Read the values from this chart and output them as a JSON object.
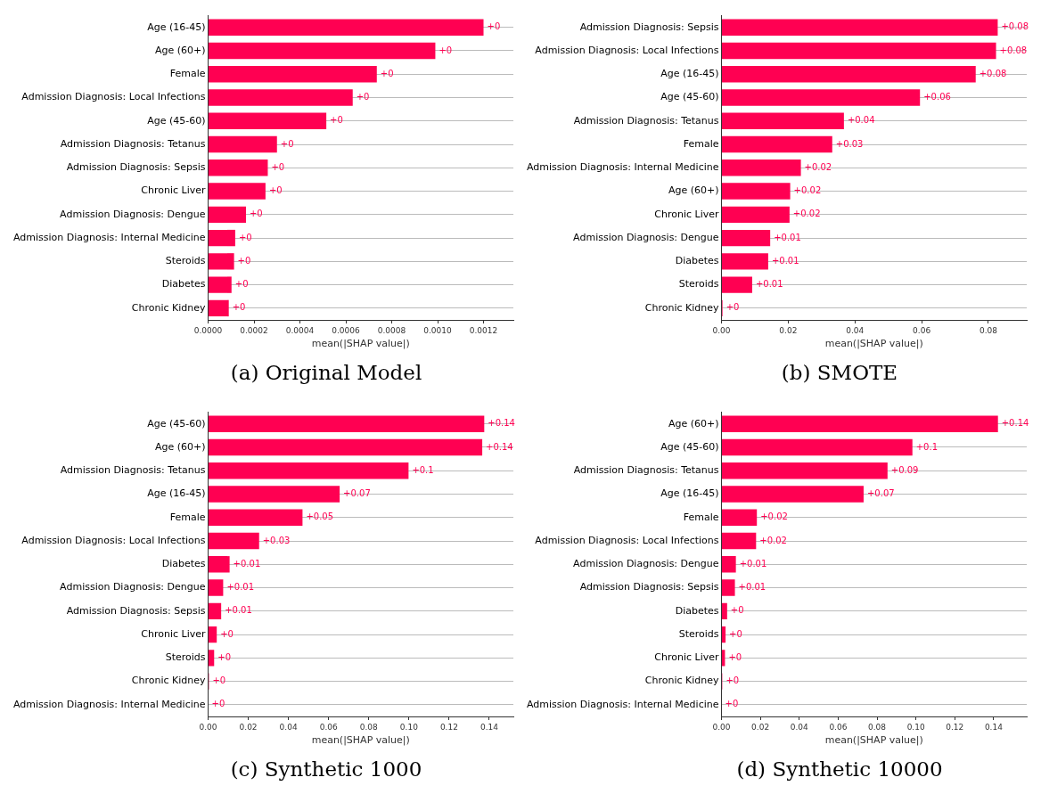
{
  "chart_data": [
    {
      "type": "bar",
      "orientation": "horizontal",
      "title": "(a) Original Model",
      "xlabel": "mean(|SHAP value|)",
      "grid": "y",
      "categories": [
        "Age (16-45)",
        "Age (60+)",
        "Female",
        "Admission Diagnosis: Local Infections",
        "Age (45-60)",
        "Admission Diagnosis: Tetanus",
        "Admission Diagnosis: Sepsis",
        "Chronic Liver",
        "Admission Diagnosis: Dengue",
        "Admission Diagnosis: Internal Medicine",
        "Steroids",
        "Diabetes",
        "Chronic Kidney"
      ],
      "series": [
        {
          "color": "#ff0052",
          "values": [
            0.0012,
            0.00099,
            0.000735,
            0.00063,
            0.000515,
            0.0003,
            0.00026,
            0.00025,
            0.000165,
            0.000118,
            0.000113,
            0.000102,
            9e-05
          ],
          "value_labels": [
            "+0",
            "+0",
            "+0",
            "+0",
            "+0",
            "+0",
            "+0",
            "+0",
            "+0",
            "+0",
            "+0",
            "+0",
            "+0"
          ]
        }
      ],
      "xlim": [
        0,
        0.00133
      ],
      "xticks": [
        {
          "value": 0,
          "label": "0.0000"
        },
        {
          "value": 0.0002,
          "label": "0.0002"
        },
        {
          "value": 0.0004,
          "label": "0.0004"
        },
        {
          "value": 0.0006,
          "label": "0.0006"
        },
        {
          "value": 0.0008,
          "label": "0.0008"
        },
        {
          "value": 0.001,
          "label": "0.0010"
        },
        {
          "value": 0.0012,
          "label": "0.0012"
        }
      ]
    },
    {
      "type": "bar",
      "orientation": "horizontal",
      "title": "(b) SMOTE",
      "xlabel": "mean(|SHAP value|)",
      "grid": "y",
      "categories": [
        "Admission Diagnosis: Sepsis",
        "Admission Diagnosis: Local Infections",
        "Age (16-45)",
        "Age (45-60)",
        "Admission Diagnosis: Tetanus",
        "Female",
        "Admission Diagnosis: Internal Medicine",
        "Age (60+)",
        "Chronic Liver",
        "Admission Diagnosis: Dengue",
        "Diabetes",
        "Steroids",
        "Chronic Kidney"
      ],
      "series": [
        {
          "color": "#ff0052",
          "values": [
            0.0828,
            0.0823,
            0.0762,
            0.0595,
            0.0367,
            0.0332,
            0.0238,
            0.0206,
            0.0204,
            0.0146,
            0.014,
            0.0092,
            0.0003
          ],
          "value_labels": [
            "+0.08",
            "+0.08",
            "+0.08",
            "+0.06",
            "+0.04",
            "+0.03",
            "+0.02",
            "+0.02",
            "+0.02",
            "+0.01",
            "+0.01",
            "+0.01",
            "+0"
          ]
        }
      ],
      "xlim": [
        0,
        0.0915
      ],
      "xticks": [
        {
          "value": 0,
          "label": "0.00"
        },
        0.02,
        0.04,
        0.06,
        0.08
      ]
    },
    {
      "type": "bar",
      "orientation": "horizontal",
      "title": "(c) Synthetic 1000",
      "xlabel": "mean(|SHAP value|)",
      "grid": "y",
      "categories": [
        "Age (45-60)",
        "Age (60+)",
        "Admission Diagnosis: Tetanus",
        "Age (16-45)",
        "Female",
        "Admission Diagnosis: Local Infections",
        "Diabetes",
        "Admission Diagnosis: Dengue",
        "Admission Diagnosis: Sepsis",
        "Chronic Liver",
        "Steroids",
        "Chronic Kidney",
        "Admission Diagnosis: Internal Medicine"
      ],
      "series": [
        {
          "color": "#ff0052",
          "values": [
            0.1375,
            0.1365,
            0.0998,
            0.0655,
            0.047,
            0.0254,
            0.0107,
            0.0075,
            0.0065,
            0.0043,
            0.003,
            0.0004,
            0
          ],
          "value_labels": [
            "+0.14",
            "+0.14",
            "+0.1",
            "+0.07",
            "+0.05",
            "+0.03",
            "+0.01",
            "+0.01",
            "+0.01",
            "+0",
            "+0",
            "+0",
            "+0"
          ]
        }
      ],
      "xlim": [
        0,
        0.152
      ],
      "xticks": [
        {
          "value": 0,
          "label": "0.00"
        },
        0.02,
        0.04,
        0.06,
        0.08,
        {
          "value": 0.1,
          "label": "0.10"
        },
        0.12,
        0.14
      ]
    },
    {
      "type": "bar",
      "orientation": "horizontal",
      "title": "(d) Synthetic 10000",
      "xlabel": "mean(|SHAP value|)",
      "grid": "y",
      "categories": [
        "Age (60+)",
        "Age (45-60)",
        "Admission Diagnosis: Tetanus",
        "Age (16-45)",
        "Female",
        "Admission Diagnosis: Local Infections",
        "Admission Diagnosis: Dengue",
        "Admission Diagnosis: Sepsis",
        "Diabetes",
        "Steroids",
        "Chronic Liver",
        "Chronic Kidney",
        "Admission Diagnosis: Internal Medicine"
      ],
      "series": [
        {
          "color": "#ff0052",
          "values": [
            0.1422,
            0.0982,
            0.0854,
            0.0731,
            0.0182,
            0.0178,
            0.0074,
            0.0069,
            0.0029,
            0.0021,
            0.0018,
            0.0004,
            0
          ],
          "value_labels": [
            "+0.14",
            "+0.1",
            "+0.09",
            "+0.07",
            "+0.02",
            "+0.02",
            "+0.01",
            "+0.01",
            "+0",
            "+0",
            "+0",
            "+0",
            "+0"
          ]
        }
      ],
      "xlim": [
        0,
        0.157
      ],
      "xticks": [
        {
          "value": 0,
          "label": "0.00"
        },
        0.02,
        0.04,
        0.06,
        0.08,
        {
          "value": 0.1,
          "label": "0.10"
        },
        0.12,
        0.14
      ]
    }
  ]
}
